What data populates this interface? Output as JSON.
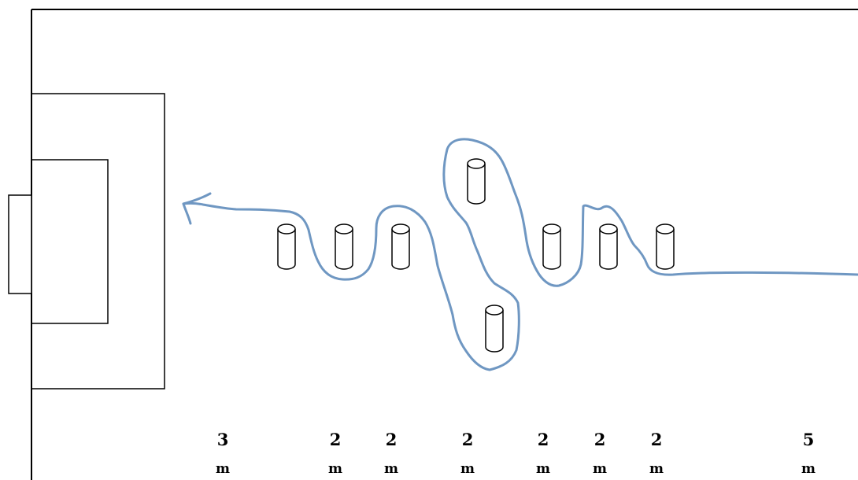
{
  "colors": {
    "line": "#000000",
    "path": "#6f97c2",
    "background": "#ffffff"
  },
  "distances": [
    {
      "value": "3",
      "unit": "m"
    },
    {
      "value": "2",
      "unit": "m"
    },
    {
      "value": "2",
      "unit": "m"
    },
    {
      "value": "2",
      "unit": "m"
    },
    {
      "value": "2",
      "unit": "m"
    },
    {
      "value": "2",
      "unit": "m"
    },
    {
      "value": "2",
      "unit": "m"
    },
    {
      "value": "5",
      "unit": "m"
    }
  ]
}
